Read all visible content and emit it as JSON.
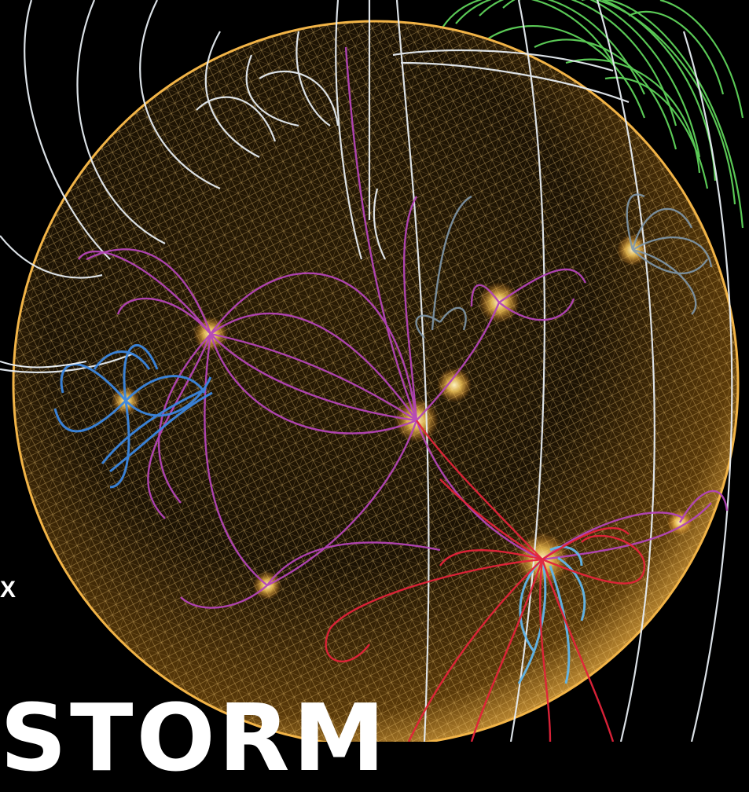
{
  "cover": {
    "edge_letter": "X",
    "headline_fragment": "STORM"
  },
  "colors": {
    "background": "#000000",
    "sun_surface": "#f2b447",
    "sun_mesh": "#ffd37a",
    "open_field_white": "#e6ecf2",
    "field_green": "#5fd35a",
    "field_magenta": "#b445b8",
    "field_blue": "#3b86e0",
    "field_lightblue": "#62b6ea",
    "field_red": "#e3233a",
    "field_slate": "#7f97aa",
    "hotspot": "#ffe29a"
  },
  "icons": {
    "sun": "sun-globe-illustration"
  }
}
